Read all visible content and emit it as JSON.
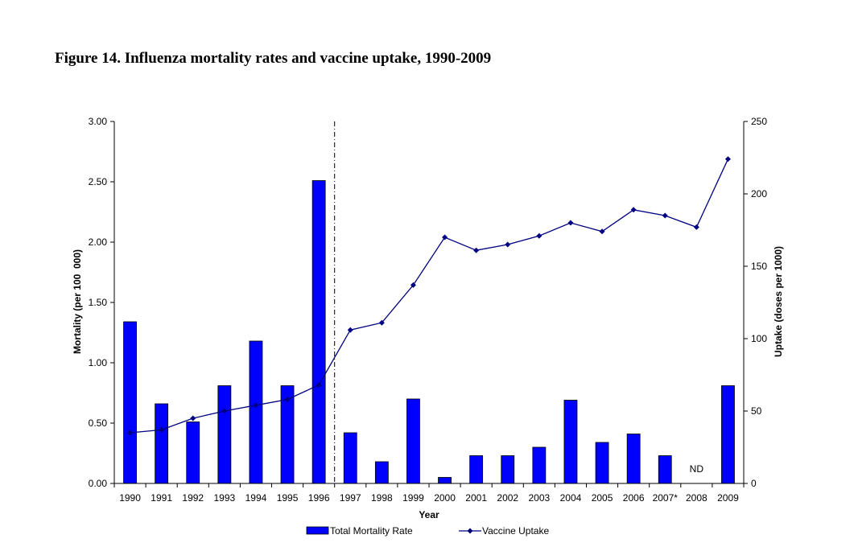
{
  "figure_title": "Figure 14. Influenza mortality rates and vaccine uptake, 1990-2009",
  "chart_data": {
    "type": "bar",
    "title": "Figure 14. Influenza mortality rates and vaccine uptake, 1990-2009",
    "xlabel": "Year",
    "ylabel": "Mortality (per 100  000)",
    "y2label": "Uptake (doses per 1000)",
    "categories": [
      "1990",
      "1991",
      "1992",
      "1993",
      "1994",
      "1995",
      "1996",
      "1997",
      "1998",
      "1999",
      "2000",
      "2001",
      "2002",
      "2003",
      "2004",
      "2005",
      "2006",
      "2007*",
      "2008",
      "2009"
    ],
    "ylim": [
      0,
      3
    ],
    "y2lim": [
      0,
      250
    ],
    "yticks": [
      "0.00",
      "0.50",
      "1.00",
      "1.50",
      "2.00",
      "2.50",
      "3.00"
    ],
    "y2ticks": [
      "0",
      "50",
      "100",
      "150",
      "200",
      "250"
    ],
    "series": [
      {
        "name": "Total Mortality Rate",
        "type": "bar",
        "axis": "left",
        "color": "#0000FF",
        "values": [
          1.34,
          0.66,
          0.51,
          0.81,
          1.18,
          0.81,
          2.51,
          0.42,
          0.18,
          0.7,
          0.05,
          0.23,
          0.23,
          0.3,
          0.69,
          0.34,
          0.41,
          0.23,
          null,
          0.81
        ]
      },
      {
        "name": "Vaccine Uptake",
        "type": "line",
        "axis": "right",
        "color": "#000080",
        "marker": "diamond",
        "values": [
          35,
          37,
          45,
          50,
          54,
          58,
          68,
          106,
          111,
          137,
          170,
          161,
          165,
          171,
          180,
          174,
          189,
          185,
          177,
          224
        ]
      }
    ],
    "annotations": [
      {
        "text": "ND",
        "category": "2008"
      }
    ],
    "reference_line": {
      "style": "dash-dot",
      "category": "1997"
    },
    "grid": false,
    "legend": "bottom"
  }
}
